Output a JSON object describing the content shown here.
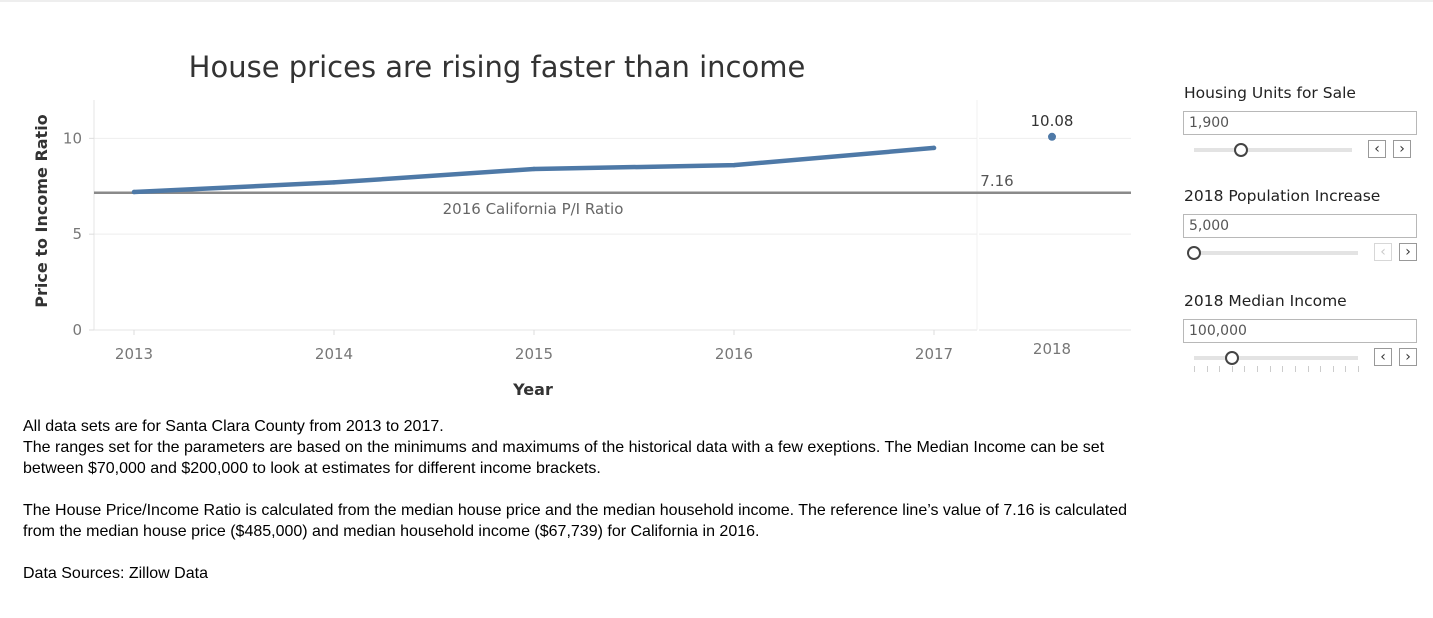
{
  "chart_data": {
    "type": "line",
    "title": "House prices are rising faster than income",
    "xlabel": "Year",
    "ylabel": "Price to Income Ratio",
    "x": [
      2013,
      2014,
      2015,
      2016,
      2017
    ],
    "series": [
      {
        "values": [
          7.2,
          7.7,
          8.4,
          8.6,
          9.5
        ],
        "color": "#4e79a7"
      }
    ],
    "projection": {
      "x": 2018,
      "value": 10.08,
      "label": "10.08",
      "color": "#4e79a7"
    },
    "reference_line": {
      "value": 7.16,
      "label": "7.16",
      "caption": "2016 California P/I Ratio",
      "color": "#8a8a8a"
    },
    "ylim": [
      0,
      12
    ],
    "yticks": [
      0,
      5,
      10
    ],
    "xticks": [
      "2013",
      "2014",
      "2015",
      "2016",
      "2017"
    ],
    "projection_tick": "2018",
    "grid": true
  },
  "controls": [
    {
      "label": "Housing Units for Sale",
      "value": "1,900",
      "position": 0.3,
      "prev_enabled": true,
      "next_enabled": true
    },
    {
      "label": "2018 Population Increase",
      "value": "5,000",
      "position": 0.0,
      "prev_enabled": false,
      "next_enabled": true
    },
    {
      "label": "2018 Median Income",
      "value": "100,000",
      "position": 0.23,
      "prev_enabled": true,
      "next_enabled": true
    }
  ],
  "icons": {
    "prev": "chevron-left-icon",
    "next": "chevron-right-icon"
  },
  "notes": {
    "line1": "All data sets are for Santa Clara County from 2013 to 2017.",
    "line2": "The ranges set for the parameters are based on the minimums and maximums of the historical data with a few exeptions. The Median Income can be set between $70,000 and $200,000 to look at estimates for different income brackets.",
    "line3": "The House Price/Income Ratio is calculated from the median house price and the median household income. The reference line’s value of 7.16 is calculated from the median house price ($485,000) and median household income ($67,739) for California in 2016.",
    "line4": "Data Sources: Zillow Data"
  }
}
